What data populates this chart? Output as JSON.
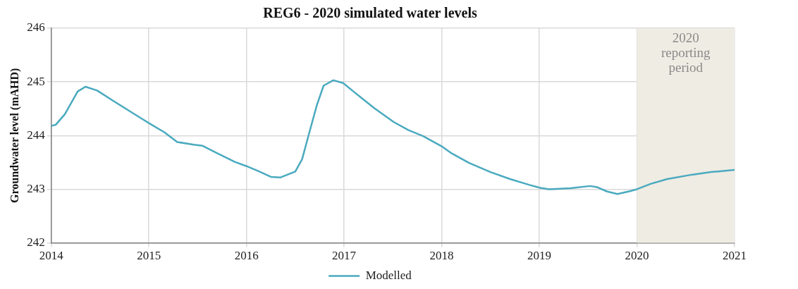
{
  "chart_data": {
    "type": "line",
    "title": "REG6 - 2020 simulated water levels",
    "ylabel": "Groundwater level (mAHD)",
    "xlim": [
      2014,
      2021
    ],
    "xticks": [
      2014,
      2015,
      2016,
      2017,
      2018,
      2019,
      2020,
      2021
    ],
    "ylim": [
      242,
      246
    ],
    "yticks": [
      242,
      243,
      244,
      245,
      246
    ],
    "grid": true,
    "legend": "bottom",
    "marker": "none",
    "line_style": "solid",
    "bands": [
      {
        "axis": "x",
        "from": 2020,
        "to": 2021,
        "label": "2020 reporting period",
        "color": "#efece4"
      }
    ],
    "series": [
      {
        "name": "Modelled",
        "color": "#4aaabf",
        "x": [
          2014.0,
          2014.045,
          2014.14,
          2014.27,
          2014.35,
          2014.47,
          2014.64,
          2014.79,
          2014.94,
          2015.03,
          2015.16,
          2015.29,
          2015.46,
          2015.55,
          2015.7,
          2015.88,
          2016.0,
          2016.12,
          2016.25,
          2016.35,
          2016.5,
          2016.57,
          2016.64,
          2016.72,
          2016.79,
          2016.89,
          2016.99,
          2017.11,
          2017.31,
          2017.51,
          2017.66,
          2017.81,
          2018.0,
          2018.1,
          2018.28,
          2018.5,
          2018.7,
          2018.9,
          2019.0,
          2019.1,
          2019.32,
          2019.52,
          2019.59,
          2019.69,
          2019.8,
          2019.92,
          2020.0,
          2020.14,
          2020.31,
          2020.56,
          2020.76,
          2021.0
        ],
        "values": [
          244.18,
          244.2,
          244.4,
          244.82,
          244.91,
          244.84,
          244.64,
          244.47,
          244.3,
          244.2,
          244.06,
          243.88,
          243.83,
          243.81,
          243.67,
          243.51,
          243.43,
          243.34,
          243.23,
          243.22,
          243.33,
          243.56,
          244.03,
          244.56,
          244.93,
          245.03,
          244.98,
          244.8,
          244.51,
          244.25,
          244.1,
          243.99,
          243.8,
          243.67,
          243.49,
          243.32,
          243.19,
          243.08,
          243.03,
          243.0,
          243.02,
          243.06,
          243.04,
          242.96,
          242.91,
          242.96,
          243.0,
          243.1,
          243.19,
          243.27,
          243.32,
          243.36
        ]
      }
    ]
  }
}
